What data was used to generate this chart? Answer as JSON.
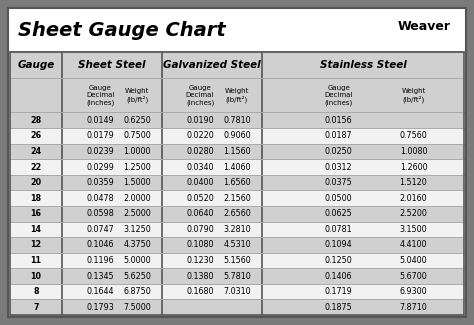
{
  "title": "Sheet Gauge Chart",
  "bg_outer": "#7a7a7a",
  "bg_white": "#ffffff",
  "row_dark": "#d0d0d0",
  "row_light": "#f2f2f2",
  "border_color": "#555555",
  "line_color": "#aaaaaa",
  "gauges": [
    28,
    26,
    24,
    22,
    20,
    18,
    16,
    14,
    12,
    11,
    10,
    8,
    7
  ],
  "row_is_dark": [
    true,
    false,
    true,
    false,
    true,
    false,
    true,
    false,
    true,
    false,
    true,
    false,
    true
  ],
  "sheet_steel": [
    [
      "0.0149",
      "0.6250"
    ],
    [
      "0.0179",
      "0.7500"
    ],
    [
      "0.0239",
      "1.0000"
    ],
    [
      "0.0299",
      "1.2500"
    ],
    [
      "0.0359",
      "1.5000"
    ],
    [
      "0.0478",
      "2.0000"
    ],
    [
      "0.0598",
      "2.5000"
    ],
    [
      "0.0747",
      "3.1250"
    ],
    [
      "0.1046",
      "4.3750"
    ],
    [
      "0.1196",
      "5.0000"
    ],
    [
      "0.1345",
      "5.6250"
    ],
    [
      "0.1644",
      "6.8750"
    ],
    [
      "0.1793",
      "7.5000"
    ]
  ],
  "galvanized_steel": [
    [
      "0.0190",
      "0.7810"
    ],
    [
      "0.0220",
      "0.9060"
    ],
    [
      "0.0280",
      "1.1560"
    ],
    [
      "0.0340",
      "1.4060"
    ],
    [
      "0.0400",
      "1.6560"
    ],
    [
      "0.0520",
      "2.1560"
    ],
    [
      "0.0640",
      "2.6560"
    ],
    [
      "0.0790",
      "3.2810"
    ],
    [
      "0.1080",
      "4.5310"
    ],
    [
      "0.1230",
      "5.1560"
    ],
    [
      "0.1380",
      "5.7810"
    ],
    [
      "0.1680",
      "7.0310"
    ],
    [
      "",
      ""
    ]
  ],
  "stainless_steel": [
    [
      "0.0156",
      ""
    ],
    [
      "0.0187",
      "0.7560"
    ],
    [
      "0.0250",
      "1.0080"
    ],
    [
      "0.0312",
      "1.2600"
    ],
    [
      "0.0375",
      "1.5120"
    ],
    [
      "0.0500",
      "2.0160"
    ],
    [
      "0.0625",
      "2.5200"
    ],
    [
      "0.0781",
      "3.1500"
    ],
    [
      "0.1094",
      "4.4100"
    ],
    [
      "0.1250",
      "5.0400"
    ],
    [
      "0.1406",
      "5.6700"
    ],
    [
      "0.1719",
      "6.9300"
    ],
    [
      "0.1875",
      "7.8710"
    ]
  ],
  "col_group_headers": [
    "Sheet Steel",
    "Galvanized Steel",
    "Stainless Steel"
  ],
  "sub_header_dec": "Gauge\nDecimal\n(inches)",
  "sub_header_wt": "Weight\n(lb/ft²)"
}
